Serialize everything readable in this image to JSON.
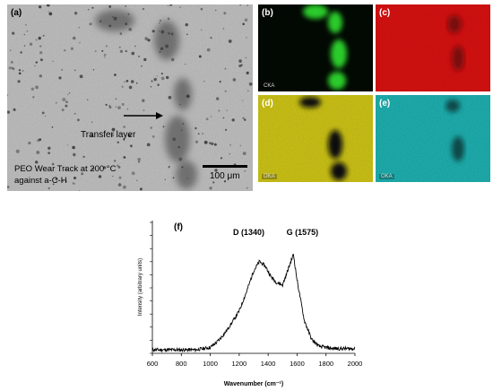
{
  "panels": {
    "a": {
      "label": "(a)",
      "arrow_label": "Transfer layer",
      "caption_line1": "PEO Wear Track at 200 °C",
      "caption_line2": "against a-C-H",
      "scale_bar": "100 μm"
    },
    "b": {
      "label": "(b)",
      "element": "CKA",
      "color": "#22cc22"
    },
    "c": {
      "label": "(c)",
      "color": "#dd1111"
    },
    "d": {
      "label": "(d)",
      "element": "OKA",
      "color": "#d8cc1c"
    },
    "e": {
      "label": "(e)",
      "element": "OKA",
      "color": "#2bc6c6"
    }
  },
  "chart_data": {
    "type": "line",
    "label": "(f)",
    "xlabel": "Wavenumber (cm⁻¹)",
    "ylabel": "Intensity (arbitrary units)",
    "xlim": [
      600,
      2000
    ],
    "xticks": [
      600,
      800,
      1000,
      1200,
      1400,
      1600,
      1800,
      2000
    ],
    "annotations": [
      {
        "text": "D (1340)",
        "x": 1340
      },
      {
        "text": "G (1575)",
        "x": 1575
      }
    ],
    "ylim": [
      0,
      1
    ],
    "series": [
      {
        "x": [
          600,
          700,
          800,
          900,
          950,
          1000,
          1050,
          1100,
          1150,
          1200,
          1250,
          1300,
          1340,
          1380,
          1420,
          1460,
          1500,
          1540,
          1575,
          1600,
          1650,
          1700,
          1750,
          1800,
          1850,
          1900,
          2000
        ],
        "y": [
          0.03,
          0.03,
          0.03,
          0.03,
          0.04,
          0.05,
          0.1,
          0.17,
          0.26,
          0.36,
          0.52,
          0.7,
          0.78,
          0.74,
          0.65,
          0.6,
          0.58,
          0.72,
          0.84,
          0.62,
          0.28,
          0.12,
          0.06,
          0.05,
          0.04,
          0.04,
          0.04
        ]
      }
    ]
  }
}
